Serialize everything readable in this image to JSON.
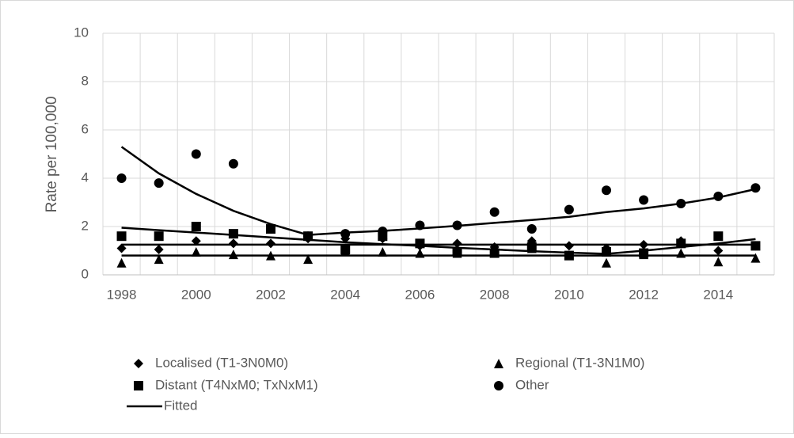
{
  "chart_data": {
    "type": "scatter",
    "y_label": "Rate per 100,000",
    "categories": [
      "1998",
      null,
      "2000",
      null,
      "2002",
      null,
      "2004",
      null,
      "2006",
      null,
      "2008",
      null,
      "2010",
      null,
      "2012",
      null,
      "2014",
      null
    ],
    "ylim": [
      0,
      10
    ],
    "yticks": [
      0,
      2,
      4,
      6,
      8,
      10
    ],
    "grid": true,
    "fitted_name": "Fitted",
    "fitted_color": "#000000",
    "series": [
      {
        "name": "Localised (T1-3N0M0)",
        "marker": "diamond",
        "color": "#000000",
        "values": [
          1.1,
          1.05,
          1.4,
          1.3,
          1.3,
          1.5,
          1.5,
          1.5,
          1.2,
          1.3,
          1.15,
          1.4,
          1.2,
          1.1,
          1.25,
          1.4,
          1.0,
          1.2
        ],
        "fitted": [
          1.25,
          1.25,
          1.25,
          1.25,
          1.25,
          1.25,
          1.25,
          1.25,
          1.25,
          1.25,
          1.25,
          1.25,
          1.25,
          1.25,
          1.25,
          1.25,
          1.25,
          1.25
        ]
      },
      {
        "name": "Regional (T1-3N1M0)",
        "marker": "triangle",
        "color": "#000000",
        "values": [
          0.5,
          0.65,
          0.95,
          0.85,
          0.8,
          0.65,
          1.0,
          0.95,
          0.9,
          0.9,
          0.9,
          1.1,
          0.8,
          0.5,
          0.85,
          0.9,
          0.55,
          0.7
        ],
        "fitted": [
          0.8,
          0.8,
          0.8,
          0.8,
          0.8,
          0.8,
          0.8,
          0.8,
          0.8,
          0.8,
          0.8,
          0.8,
          0.8,
          0.8,
          0.8,
          0.8,
          0.8,
          0.8
        ]
      },
      {
        "name": "Distant (T4NxM0; TxNxM1)",
        "marker": "square",
        "color": "#000000",
        "values": [
          1.6,
          1.6,
          2.0,
          1.7,
          1.9,
          1.6,
          1.05,
          1.6,
          1.3,
          0.95,
          0.9,
          1.15,
          0.8,
          0.95,
          0.9,
          1.3,
          1.6,
          1.2
        ],
        "fitted": [
          1.95,
          1.85,
          1.75,
          1.65,
          1.55,
          1.45,
          1.35,
          1.27,
          1.2,
          1.12,
          1.05,
          0.98,
          0.92,
          0.87,
          1.0,
          1.15,
          1.3,
          1.48
        ]
      },
      {
        "name": "Other",
        "marker": "circle",
        "color": "#000000",
        "values": [
          4.0,
          3.8,
          5.0,
          4.6,
          1.9,
          1.6,
          1.7,
          1.8,
          2.05,
          2.05,
          2.6,
          1.9,
          2.7,
          3.5,
          3.1,
          2.95,
          3.25,
          3.6
        ],
        "fitted": [
          5.3,
          4.2,
          3.35,
          2.65,
          2.1,
          1.65,
          1.75,
          1.82,
          1.92,
          2.03,
          2.15,
          2.27,
          2.4,
          2.6,
          2.75,
          2.95,
          3.2,
          3.55
        ]
      }
    ]
  }
}
